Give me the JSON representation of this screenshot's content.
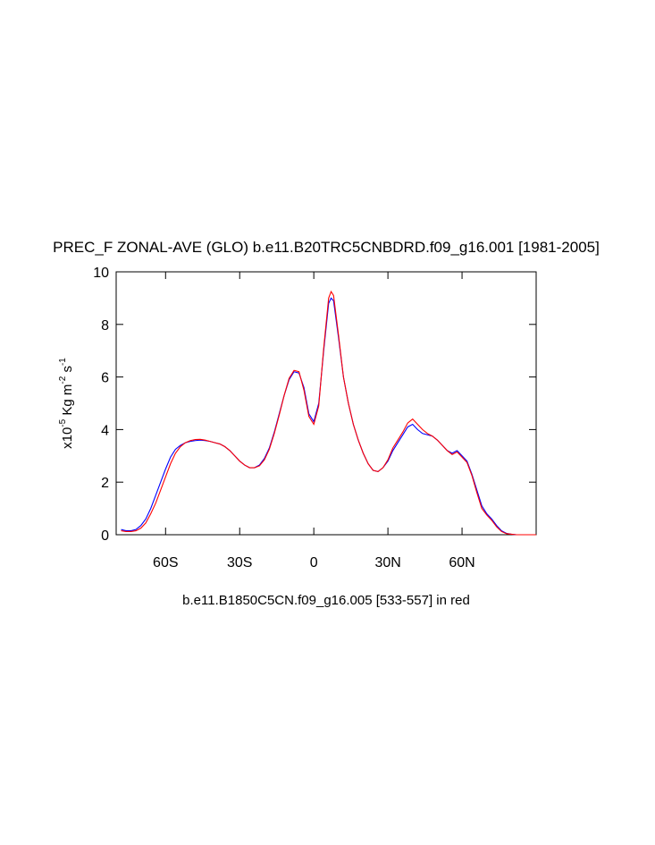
{
  "chart_data": {
    "type": "line",
    "title": "PREC_F ZONAL-AVE (GLO) b.e11.B20TRC5CNBDRD.f09_g16.001 [1981-2005]",
    "subtitle": "b.e11.B1850C5CN.f09_g16.005 [533-557] in red",
    "ylabel": [
      {
        "text": "x10",
        "superscript": false
      },
      {
        "text": "-5",
        "superscript": true
      },
      {
        "text": " Kg m",
        "superscript": false
      },
      {
        "text": "-2",
        "superscript": true
      },
      {
        "text": " s",
        "superscript": false
      },
      {
        "text": "-1",
        "superscript": true
      }
    ],
    "x": [
      -78,
      -76,
      -74,
      -72,
      -70,
      -68,
      -66,
      -64,
      -62,
      -60,
      -58,
      -56,
      -54,
      -52,
      -50,
      -48,
      -46,
      -44,
      -42,
      -40,
      -38,
      -36,
      -34,
      -32,
      -30,
      -28,
      -26,
      -24,
      -22,
      -20,
      -18,
      -16,
      -14,
      -12,
      -10,
      -8,
      -6,
      -4,
      -2,
      0,
      2,
      4,
      6,
      7,
      8,
      10,
      12,
      14,
      16,
      18,
      20,
      22,
      24,
      26,
      28,
      30,
      32,
      34,
      36,
      38,
      40,
      42,
      44,
      46,
      48,
      50,
      52,
      54,
      56,
      58,
      60,
      62,
      64,
      66,
      68,
      70,
      72,
      74,
      76,
      78,
      80,
      82,
      86,
      90
    ],
    "series": [
      {
        "color": "#0000ff",
        "values": [
          0.2,
          0.15,
          0.15,
          0.2,
          0.35,
          0.6,
          1.0,
          1.5,
          2.0,
          2.5,
          2.95,
          3.25,
          3.4,
          3.5,
          3.55,
          3.58,
          3.6,
          3.58,
          3.55,
          3.5,
          3.45,
          3.35,
          3.2,
          3.0,
          2.8,
          2.65,
          2.55,
          2.55,
          2.65,
          2.9,
          3.3,
          3.9,
          4.6,
          5.3,
          5.9,
          6.2,
          6.15,
          5.6,
          4.6,
          4.3,
          5.0,
          7.0,
          8.8,
          9.0,
          8.9,
          7.5,
          6.0,
          5.0,
          4.2,
          3.6,
          3.1,
          2.7,
          2.45,
          2.4,
          2.55,
          2.8,
          3.2,
          3.5,
          3.8,
          4.1,
          4.2,
          4.0,
          3.85,
          3.8,
          3.75,
          3.6,
          3.4,
          3.2,
          3.1,
          3.2,
          3.0,
          2.8,
          2.3,
          1.7,
          1.1,
          0.8,
          0.6,
          0.35,
          0.15,
          0.05,
          0.02,
          0,
          0,
          0
        ]
      },
      {
        "color": "#ff0000",
        "values": [
          0.15,
          0.12,
          0.12,
          0.15,
          0.25,
          0.45,
          0.8,
          1.2,
          1.7,
          2.2,
          2.7,
          3.1,
          3.35,
          3.5,
          3.58,
          3.62,
          3.63,
          3.6,
          3.55,
          3.5,
          3.45,
          3.35,
          3.2,
          3.0,
          2.8,
          2.65,
          2.55,
          2.55,
          2.62,
          2.85,
          3.25,
          3.85,
          4.55,
          5.3,
          5.95,
          6.25,
          6.2,
          5.5,
          4.5,
          4.2,
          4.9,
          7.1,
          9.0,
          9.25,
          9.1,
          7.6,
          6.0,
          5.0,
          4.2,
          3.6,
          3.1,
          2.7,
          2.45,
          2.4,
          2.55,
          2.85,
          3.3,
          3.6,
          3.9,
          4.25,
          4.4,
          4.2,
          4.0,
          3.85,
          3.75,
          3.6,
          3.4,
          3.2,
          3.05,
          3.15,
          2.95,
          2.75,
          2.25,
          1.6,
          1.0,
          0.75,
          0.55,
          0.3,
          0.12,
          0.04,
          0.02,
          0,
          0,
          0
        ]
      }
    ],
    "xlim": [
      -80,
      90
    ],
    "xticks": [
      {
        "value": -60,
        "label": "60S"
      },
      {
        "value": -30,
        "label": "30S"
      },
      0,
      {
        "value": 30,
        "label": "30N"
      },
      {
        "value": 60,
        "label": "60N"
      }
    ],
    "ylim": [
      0,
      10
    ],
    "yticks": [
      0,
      2,
      4,
      6,
      8,
      10
    ],
    "grid": false
  }
}
